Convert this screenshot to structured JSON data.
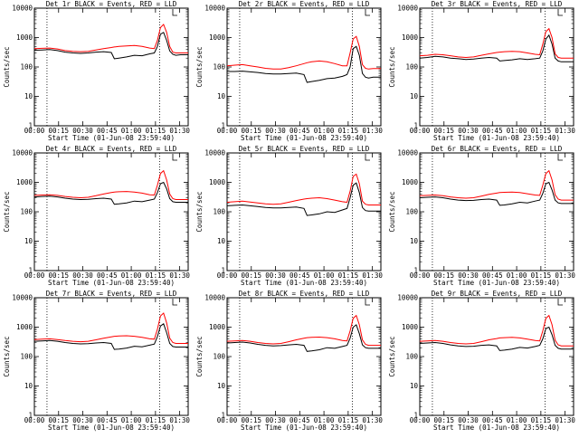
{
  "page": {
    "xlabel": "Start Time (01-Jun-08 23:59:40)",
    "ylabel": "Counts/sec",
    "x_ticks": [
      "00:00",
      "00:15",
      "00:30",
      "00:45",
      "01:00",
      "01:15",
      "01:30"
    ],
    "y_ticks": [
      "1",
      "10",
      "100",
      "1000",
      "10000"
    ],
    "colors": {
      "events": "#000000",
      "lld": "#ff0000"
    },
    "scale": "log"
  },
  "chart_data": [
    {
      "type": "line",
      "title": "Det 1r BLACK = Events, RED = LLD",
      "ylim": [
        1,
        10000
      ],
      "xlim": [
        0,
        100
      ],
      "vlines": [
        8.2,
        81.5
      ],
      "x": [
        0,
        5,
        10,
        15,
        20,
        25,
        30,
        35,
        40,
        45,
        50,
        52,
        55,
        60,
        65,
        70,
        75,
        78,
        80,
        82,
        84,
        86,
        88,
        90,
        92,
        95,
        100
      ],
      "series": [
        {
          "name": "Events",
          "values": [
            370,
            380,
            390,
            360,
            320,
            300,
            290,
            300,
            320,
            330,
            310,
            190,
            200,
            220,
            250,
            240,
            280,
            300,
            500,
            1300,
            1500,
            800,
            350,
            270,
            250,
            260,
            260
          ]
        },
        {
          "name": "LLD",
          "values": [
            420,
            430,
            440,
            410,
            360,
            340,
            330,
            340,
            380,
            420,
            460,
            480,
            500,
            520,
            540,
            500,
            440,
            420,
            800,
            2200,
            2800,
            1500,
            500,
            320,
            300,
            300,
            300
          ]
        }
      ]
    },
    {
      "type": "line",
      "title": "Det 2r BLACK = Events, RED = LLD",
      "ylim": [
        1,
        10000
      ],
      "xlim": [
        0,
        100
      ],
      "vlines": [
        8.2,
        81.5
      ],
      "x": [
        0,
        5,
        10,
        15,
        20,
        25,
        30,
        35,
        40,
        45,
        50,
        52,
        55,
        60,
        65,
        70,
        75,
        78,
        80,
        82,
        84,
        86,
        88,
        90,
        92,
        95,
        100
      ],
      "series": [
        {
          "name": "Events",
          "values": [
            70,
            70,
            72,
            68,
            65,
            60,
            58,
            58,
            60,
            62,
            55,
            30,
            32,
            35,
            40,
            42,
            48,
            55,
            100,
            420,
            500,
            250,
            60,
            45,
            42,
            45,
            45
          ]
        },
        {
          "name": "LLD",
          "values": [
            110,
            115,
            120,
            110,
            100,
            90,
            85,
            85,
            95,
            110,
            130,
            140,
            150,
            160,
            150,
            130,
            110,
            110,
            300,
            900,
            1100,
            500,
            120,
            90,
            85,
            88,
            88
          ]
        }
      ]
    },
    {
      "type": "line",
      "title": "Det 3r BLACK = Events, RED = LLD",
      "ylim": [
        1,
        10000
      ],
      "xlim": [
        0,
        100
      ],
      "vlines": [
        8.2,
        81.5
      ],
      "x": [
        0,
        5,
        10,
        15,
        20,
        25,
        30,
        35,
        40,
        45,
        50,
        52,
        55,
        60,
        65,
        70,
        75,
        78,
        80,
        82,
        84,
        86,
        88,
        90,
        92,
        95,
        100
      ],
      "series": [
        {
          "name": "Events",
          "values": [
            200,
            210,
            230,
            220,
            200,
            190,
            180,
            185,
            200,
            210,
            200,
            160,
            165,
            175,
            190,
            180,
            190,
            200,
            350,
            900,
            1200,
            600,
            200,
            160,
            150,
            150,
            150
          ]
        },
        {
          "name": "LLD",
          "values": [
            240,
            250,
            270,
            260,
            240,
            220,
            210,
            220,
            250,
            280,
            310,
            320,
            330,
            340,
            330,
            300,
            270,
            260,
            600,
            1600,
            2000,
            1000,
            280,
            210,
            200,
            200,
            200
          ]
        }
      ]
    },
    {
      "type": "line",
      "title": "Det 4r BLACK = Events, RED = LLD",
      "ylim": [
        1,
        10000
      ],
      "xlim": [
        0,
        100
      ],
      "vlines": [
        8.2,
        81.5
      ],
      "x": [
        0,
        5,
        10,
        15,
        20,
        25,
        30,
        35,
        40,
        45,
        50,
        52,
        55,
        60,
        65,
        70,
        75,
        78,
        80,
        82,
        84,
        86,
        88,
        90,
        92,
        95,
        100
      ],
      "series": [
        {
          "name": "Events",
          "values": [
            320,
            330,
            340,
            320,
            290,
            270,
            260,
            265,
            280,
            290,
            270,
            180,
            185,
            200,
            230,
            220,
            250,
            270,
            450,
            900,
            1000,
            600,
            280,
            220,
            210,
            210,
            210
          ]
        },
        {
          "name": "LLD",
          "values": [
            360,
            370,
            380,
            360,
            330,
            310,
            300,
            310,
            350,
            400,
            450,
            470,
            480,
            490,
            470,
            430,
            380,
            370,
            800,
            2000,
            2500,
            1200,
            400,
            280,
            260,
            260,
            260
          ]
        }
      ]
    },
    {
      "type": "line",
      "title": "Det 5r BLACK = Events, RED = LLD",
      "ylim": [
        1,
        10000
      ],
      "xlim": [
        0,
        100
      ],
      "vlines": [
        8.2,
        81.5
      ],
      "x": [
        0,
        5,
        10,
        15,
        20,
        25,
        30,
        35,
        40,
        45,
        50,
        52,
        55,
        60,
        65,
        70,
        75,
        78,
        80,
        82,
        84,
        86,
        88,
        90,
        92,
        95,
        100
      ],
      "series": [
        {
          "name": "Events",
          "values": [
            160,
            165,
            170,
            160,
            150,
            140,
            135,
            135,
            140,
            145,
            130,
            75,
            78,
            85,
            100,
            95,
            115,
            130,
            300,
            800,
            950,
            450,
            140,
            110,
            105,
            105,
            105
          ]
        },
        {
          "name": "LLD",
          "values": [
            210,
            220,
            230,
            215,
            200,
            185,
            180,
            185,
            210,
            240,
            270,
            280,
            290,
            300,
            280,
            250,
            220,
            210,
            500,
            1600,
            1900,
            900,
            230,
            180,
            170,
            170,
            170
          ]
        }
      ]
    },
    {
      "type": "line",
      "title": "Det 6r BLACK = Events, RED = LLD",
      "ylim": [
        1,
        10000
      ],
      "xlim": [
        0,
        100
      ],
      "vlines": [
        8.2,
        81.5
      ],
      "x": [
        0,
        5,
        10,
        15,
        20,
        25,
        30,
        35,
        40,
        45,
        50,
        52,
        55,
        60,
        65,
        70,
        75,
        78,
        80,
        82,
        84,
        86,
        88,
        90,
        92,
        95,
        100
      ],
      "series": [
        {
          "name": "Events",
          "values": [
            300,
            310,
            320,
            300,
            270,
            250,
            240,
            245,
            260,
            270,
            250,
            165,
            170,
            185,
            210,
            200,
            230,
            250,
            420,
            900,
            1000,
            550,
            250,
            200,
            190,
            190,
            190
          ]
        },
        {
          "name": "LLD",
          "values": [
            350,
            360,
            370,
            350,
            320,
            300,
            290,
            300,
            340,
            390,
            430,
            450,
            460,
            470,
            450,
            410,
            370,
            360,
            800,
            2000,
            2500,
            1200,
            380,
            270,
            250,
            250,
            250
          ]
        }
      ]
    },
    {
      "type": "line",
      "title": "Det 7r BLACK = Events, RED = LLD",
      "ylim": [
        1,
        10000
      ],
      "xlim": [
        0,
        100
      ],
      "vlines": [
        8.2,
        81.5
      ],
      "x": [
        0,
        5,
        10,
        15,
        20,
        25,
        30,
        35,
        40,
        45,
        50,
        52,
        55,
        60,
        65,
        70,
        75,
        78,
        80,
        82,
        84,
        86,
        88,
        90,
        92,
        95,
        100
      ],
      "series": [
        {
          "name": "Events",
          "values": [
            330,
            340,
            350,
            330,
            300,
            280,
            270,
            275,
            290,
            300,
            280,
            175,
            180,
            195,
            225,
            215,
            245,
            265,
            480,
            1100,
            1300,
            650,
            280,
            220,
            210,
            210,
            210
          ]
        },
        {
          "name": "LLD",
          "values": [
            380,
            390,
            400,
            380,
            350,
            330,
            320,
            330,
            370,
            420,
            470,
            490,
            500,
            510,
            490,
            450,
            400,
            390,
            850,
            2400,
            3000,
            1400,
            420,
            300,
            280,
            280,
            280
          ]
        }
      ]
    },
    {
      "type": "line",
      "title": "Det 8r BLACK = Events, RED = LLD",
      "ylim": [
        1,
        10000
      ],
      "xlim": [
        0,
        100
      ],
      "vlines": [
        8.2,
        81.5
      ],
      "x": [
        0,
        5,
        10,
        15,
        20,
        25,
        30,
        35,
        40,
        45,
        50,
        52,
        55,
        60,
        65,
        70,
        75,
        78,
        80,
        82,
        84,
        86,
        88,
        90,
        92,
        95,
        100
      ],
      "series": [
        {
          "name": "Events",
          "values": [
            290,
            300,
            310,
            290,
            260,
            240,
            230,
            235,
            250,
            260,
            240,
            150,
            155,
            170,
            200,
            190,
            220,
            240,
            420,
            1000,
            1200,
            600,
            250,
            200,
            190,
            190,
            190
          ]
        },
        {
          "name": "LLD",
          "values": [
            330,
            340,
            350,
            330,
            300,
            280,
            270,
            280,
            320,
            370,
            420,
            440,
            450,
            460,
            440,
            400,
            350,
            340,
            750,
            2000,
            2500,
            1200,
            370,
            260,
            240,
            240,
            240
          ]
        }
      ]
    },
    {
      "type": "line",
      "title": "Det 9r BLACK = Events, RED = LLD",
      "ylim": [
        1,
        10000
      ],
      "xlim": [
        0,
        100
      ],
      "vlines": [
        8.2,
        81.5
      ],
      "x": [
        0,
        5,
        10,
        15,
        20,
        25,
        30,
        35,
        40,
        45,
        50,
        52,
        55,
        60,
        65,
        70,
        75,
        78,
        80,
        82,
        84,
        86,
        88,
        90,
        92,
        95,
        100
      ],
      "series": [
        {
          "name": "Events",
          "values": [
            280,
            290,
            300,
            280,
            250,
            230,
            220,
            225,
            240,
            250,
            230,
            160,
            165,
            180,
            205,
            195,
            220,
            240,
            400,
            900,
            1000,
            550,
            240,
            190,
            180,
            180,
            180
          ]
        },
        {
          "name": "LLD",
          "values": [
            330,
            340,
            350,
            330,
            300,
            280,
            270,
            280,
            320,
            370,
            410,
            430,
            440,
            450,
            430,
            390,
            350,
            340,
            750,
            2000,
            2500,
            1200,
            360,
            250,
            230,
            230,
            230
          ]
        }
      ]
    }
  ]
}
